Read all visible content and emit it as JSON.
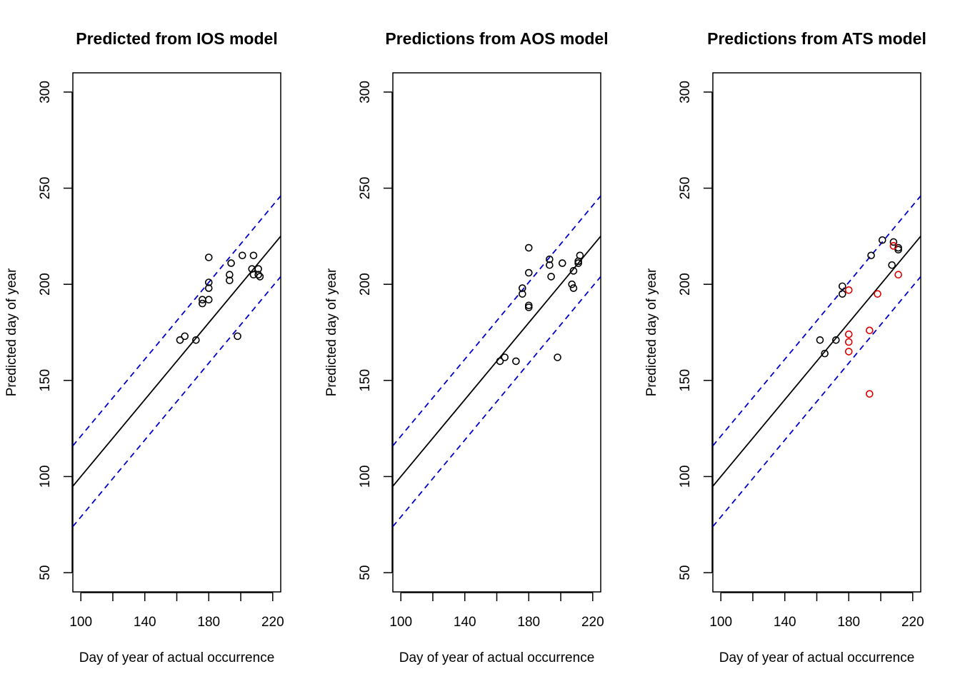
{
  "figure": {
    "background": "#ffffff",
    "colors": {
      "fit_line": "#000000",
      "band_line": "#0000cc",
      "point_default": "#000000",
      "point_highlight": "#dd0000"
    }
  },
  "chart_data": [
    {
      "type": "scatter",
      "title": "Predicted from IOS model",
      "xlabel": "Day of year of actual occurrence",
      "ylabel": "Predicted day of year",
      "xlim": [
        95,
        225
      ],
      "ylim": [
        40,
        310
      ],
      "xticks": [
        100,
        120,
        140,
        160,
        180,
        200,
        220
      ],
      "xtick_labels": [
        "100",
        "",
        "140",
        "",
        "180",
        "",
        "220"
      ],
      "yticks": [
        50,
        100,
        150,
        200,
        250,
        300
      ],
      "yticks_labels": [
        "50",
        "100",
        "150",
        "200",
        "250",
        "300"
      ],
      "grid": false,
      "fit_line": {
        "slope": 1,
        "intercept": 0,
        "style": "solid"
      },
      "prediction_band": {
        "offset": 21,
        "style": "dashed"
      },
      "series": [
        {
          "color": "#000000",
          "points": [
            [
              162,
              171
            ],
            [
              165,
              173
            ],
            [
              172,
              171
            ],
            [
              176,
              190
            ],
            [
              176,
              192
            ],
            [
              180,
              192
            ],
            [
              180,
              198
            ],
            [
              180,
              201
            ],
            [
              180,
              214
            ],
            [
              193,
              202
            ],
            [
              193,
              205
            ],
            [
              194,
              211
            ],
            [
              198,
              173
            ],
            [
              201,
              215
            ],
            [
              207,
              208
            ],
            [
              208,
              215
            ],
            [
              208,
              205
            ],
            [
              211,
              208
            ],
            [
              211,
              205
            ],
            [
              212,
              204
            ]
          ]
        }
      ]
    },
    {
      "type": "scatter",
      "title": "Predictions from AOS model",
      "xlabel": "Day of year of actual occurrence",
      "ylabel": "Predicted day of year",
      "xlim": [
        95,
        225
      ],
      "ylim": [
        40,
        310
      ],
      "xticks": [
        100,
        120,
        140,
        160,
        180,
        200,
        220
      ],
      "xtick_labels": [
        "100",
        "",
        "140",
        "",
        "180",
        "",
        "220"
      ],
      "yticks": [
        50,
        100,
        150,
        200,
        250,
        300
      ],
      "yticks_labels": [
        "50",
        "100",
        "150",
        "200",
        "250",
        "300"
      ],
      "grid": false,
      "fit_line": {
        "slope": 1,
        "intercept": 0,
        "style": "solid"
      },
      "prediction_band": {
        "offset": 21,
        "style": "dashed"
      },
      "series": [
        {
          "color": "#000000",
          "points": [
            [
              162,
              160
            ],
            [
              165,
              162
            ],
            [
              172,
              160
            ],
            [
              176,
              195
            ],
            [
              176,
              198
            ],
            [
              180,
              188
            ],
            [
              180,
              189
            ],
            [
              180,
              206
            ],
            [
              180,
              219
            ],
            [
              193,
              213
            ],
            [
              193,
              210
            ],
            [
              194,
              204
            ],
            [
              198,
              162
            ],
            [
              201,
              211
            ],
            [
              207,
              200
            ],
            [
              208,
              198
            ],
            [
              208,
              207
            ],
            [
              211,
              211
            ],
            [
              211,
              212
            ],
            [
              212,
              215
            ]
          ]
        }
      ]
    },
    {
      "type": "scatter",
      "title": "Predictions from ATS model",
      "xlabel": "Day of year of actual occurrence",
      "ylabel": "Predicted day of year",
      "xlim": [
        95,
        225
      ],
      "ylim": [
        40,
        310
      ],
      "xticks": [
        100,
        120,
        140,
        160,
        180,
        200,
        220
      ],
      "xtick_labels": [
        "100",
        "",
        "140",
        "",
        "180",
        "",
        "220"
      ],
      "yticks": [
        50,
        100,
        150,
        200,
        250,
        300
      ],
      "yticks_labels": [
        "50",
        "100",
        "150",
        "200",
        "250",
        "300"
      ],
      "grid": false,
      "fit_line": {
        "slope": 1,
        "intercept": 0,
        "style": "solid"
      },
      "prediction_band": {
        "offset": 21,
        "style": "dashed"
      },
      "series": [
        {
          "color": "#000000",
          "points": [
            [
              162,
              171
            ],
            [
              165,
              164
            ],
            [
              172,
              171
            ],
            [
              176,
              195
            ],
            [
              176,
              199
            ],
            [
              194,
              215
            ],
            [
              201,
              223
            ],
            [
              207,
              210
            ],
            [
              208,
              222
            ],
            [
              211,
              219
            ],
            [
              211,
              218
            ]
          ]
        },
        {
          "color": "#dd0000",
          "points": [
            [
              180,
              197
            ],
            [
              180,
              174
            ],
            [
              180,
              170
            ],
            [
              180,
              165
            ],
            [
              193,
              176
            ],
            [
              193,
              143
            ],
            [
              198,
              195
            ],
            [
              208,
              220
            ],
            [
              211,
              205
            ]
          ]
        }
      ]
    }
  ]
}
